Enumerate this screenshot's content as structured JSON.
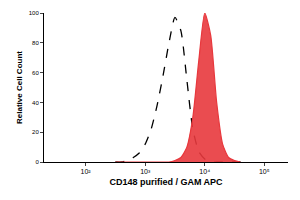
{
  "chart_data": {
    "type": "line",
    "x_label": "CD148 purified / GAM APC",
    "y_label": "Relative Cell Count",
    "log": "x",
    "grid": false,
    "x": [
      316,
      398,
      501,
      631,
      794,
      1000,
      1259,
      1585,
      1995,
      2512,
      3162,
      3981,
      5012,
      6310,
      7943,
      10000,
      12589,
      15849,
      19953,
      25119,
      31623,
      39811
    ],
    "series": [
      {
        "type": "line",
        "line_style": "dashed",
        "color": "#000000",
        "values": [
          0,
          0,
          1,
          3,
          6,
          12,
          22,
          38,
          58,
          80,
          97,
          88,
          55,
          22,
          7,
          2,
          0,
          0,
          0,
          0,
          0,
          0
        ]
      },
      {
        "type": "area",
        "line_style": "solid",
        "color": "#e8383d",
        "values": [
          0,
          0,
          0,
          0,
          0,
          0,
          0,
          0,
          0,
          0,
          1,
          3,
          10,
          30,
          68,
          100,
          85,
          40,
          12,
          3,
          1,
          0
        ]
      }
    ],
    "xlim": [
      20,
      250000
    ],
    "xticks": [
      {
        "value": 100,
        "label": "10²"
      },
      {
        "value": 1000,
        "label": "10³"
      },
      {
        "value": 10000,
        "label": "10⁴"
      },
      {
        "value": 100000,
        "label": "10⁵"
      }
    ],
    "ylim": [
      0,
      100
    ],
    "yticks": [
      0,
      20,
      40,
      60,
      80,
      100
    ]
  }
}
